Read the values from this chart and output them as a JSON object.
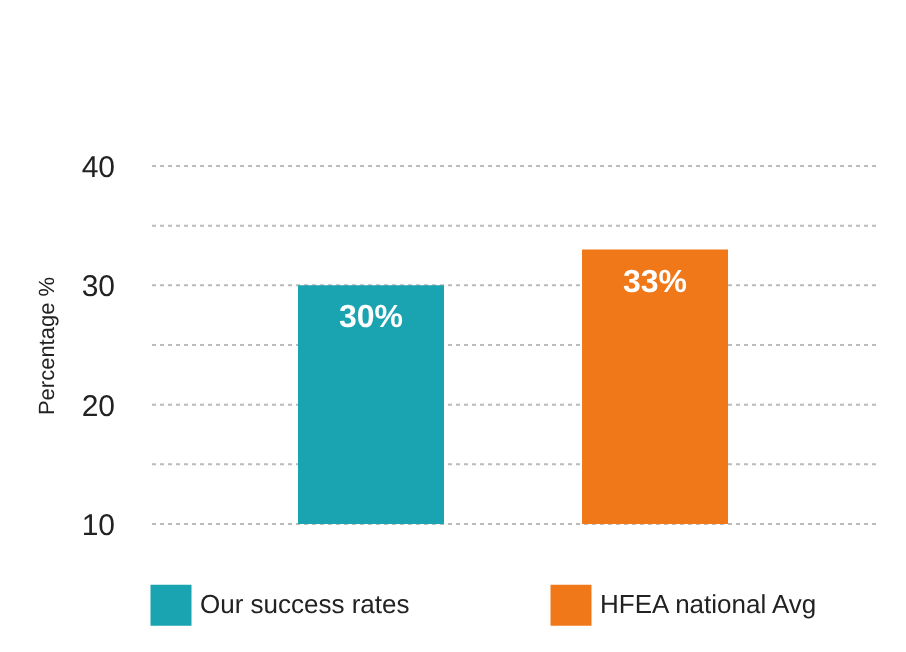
{
  "chart_data": {
    "type": "bar",
    "ylabel": "Percentage %",
    "categories": [
      null
    ],
    "series": [
      {
        "name": "Our success rates",
        "color": "#1aa3b0",
        "values": [
          30
        ],
        "value_labels": [
          "30%"
        ]
      },
      {
        "name": "HFEA national Avg",
        "color": "#f07819",
        "values": [
          33
        ],
        "value_labels": [
          "33%"
        ]
      }
    ],
    "ylim": [
      10,
      40
    ],
    "yticks": [
      10,
      {
        "value": 15,
        "label": null
      },
      20,
      {
        "value": 25,
        "label": null
      },
      30,
      {
        "value": 35,
        "label": null
      },
      40
    ],
    "grid": "y",
    "legend": "bottom"
  }
}
